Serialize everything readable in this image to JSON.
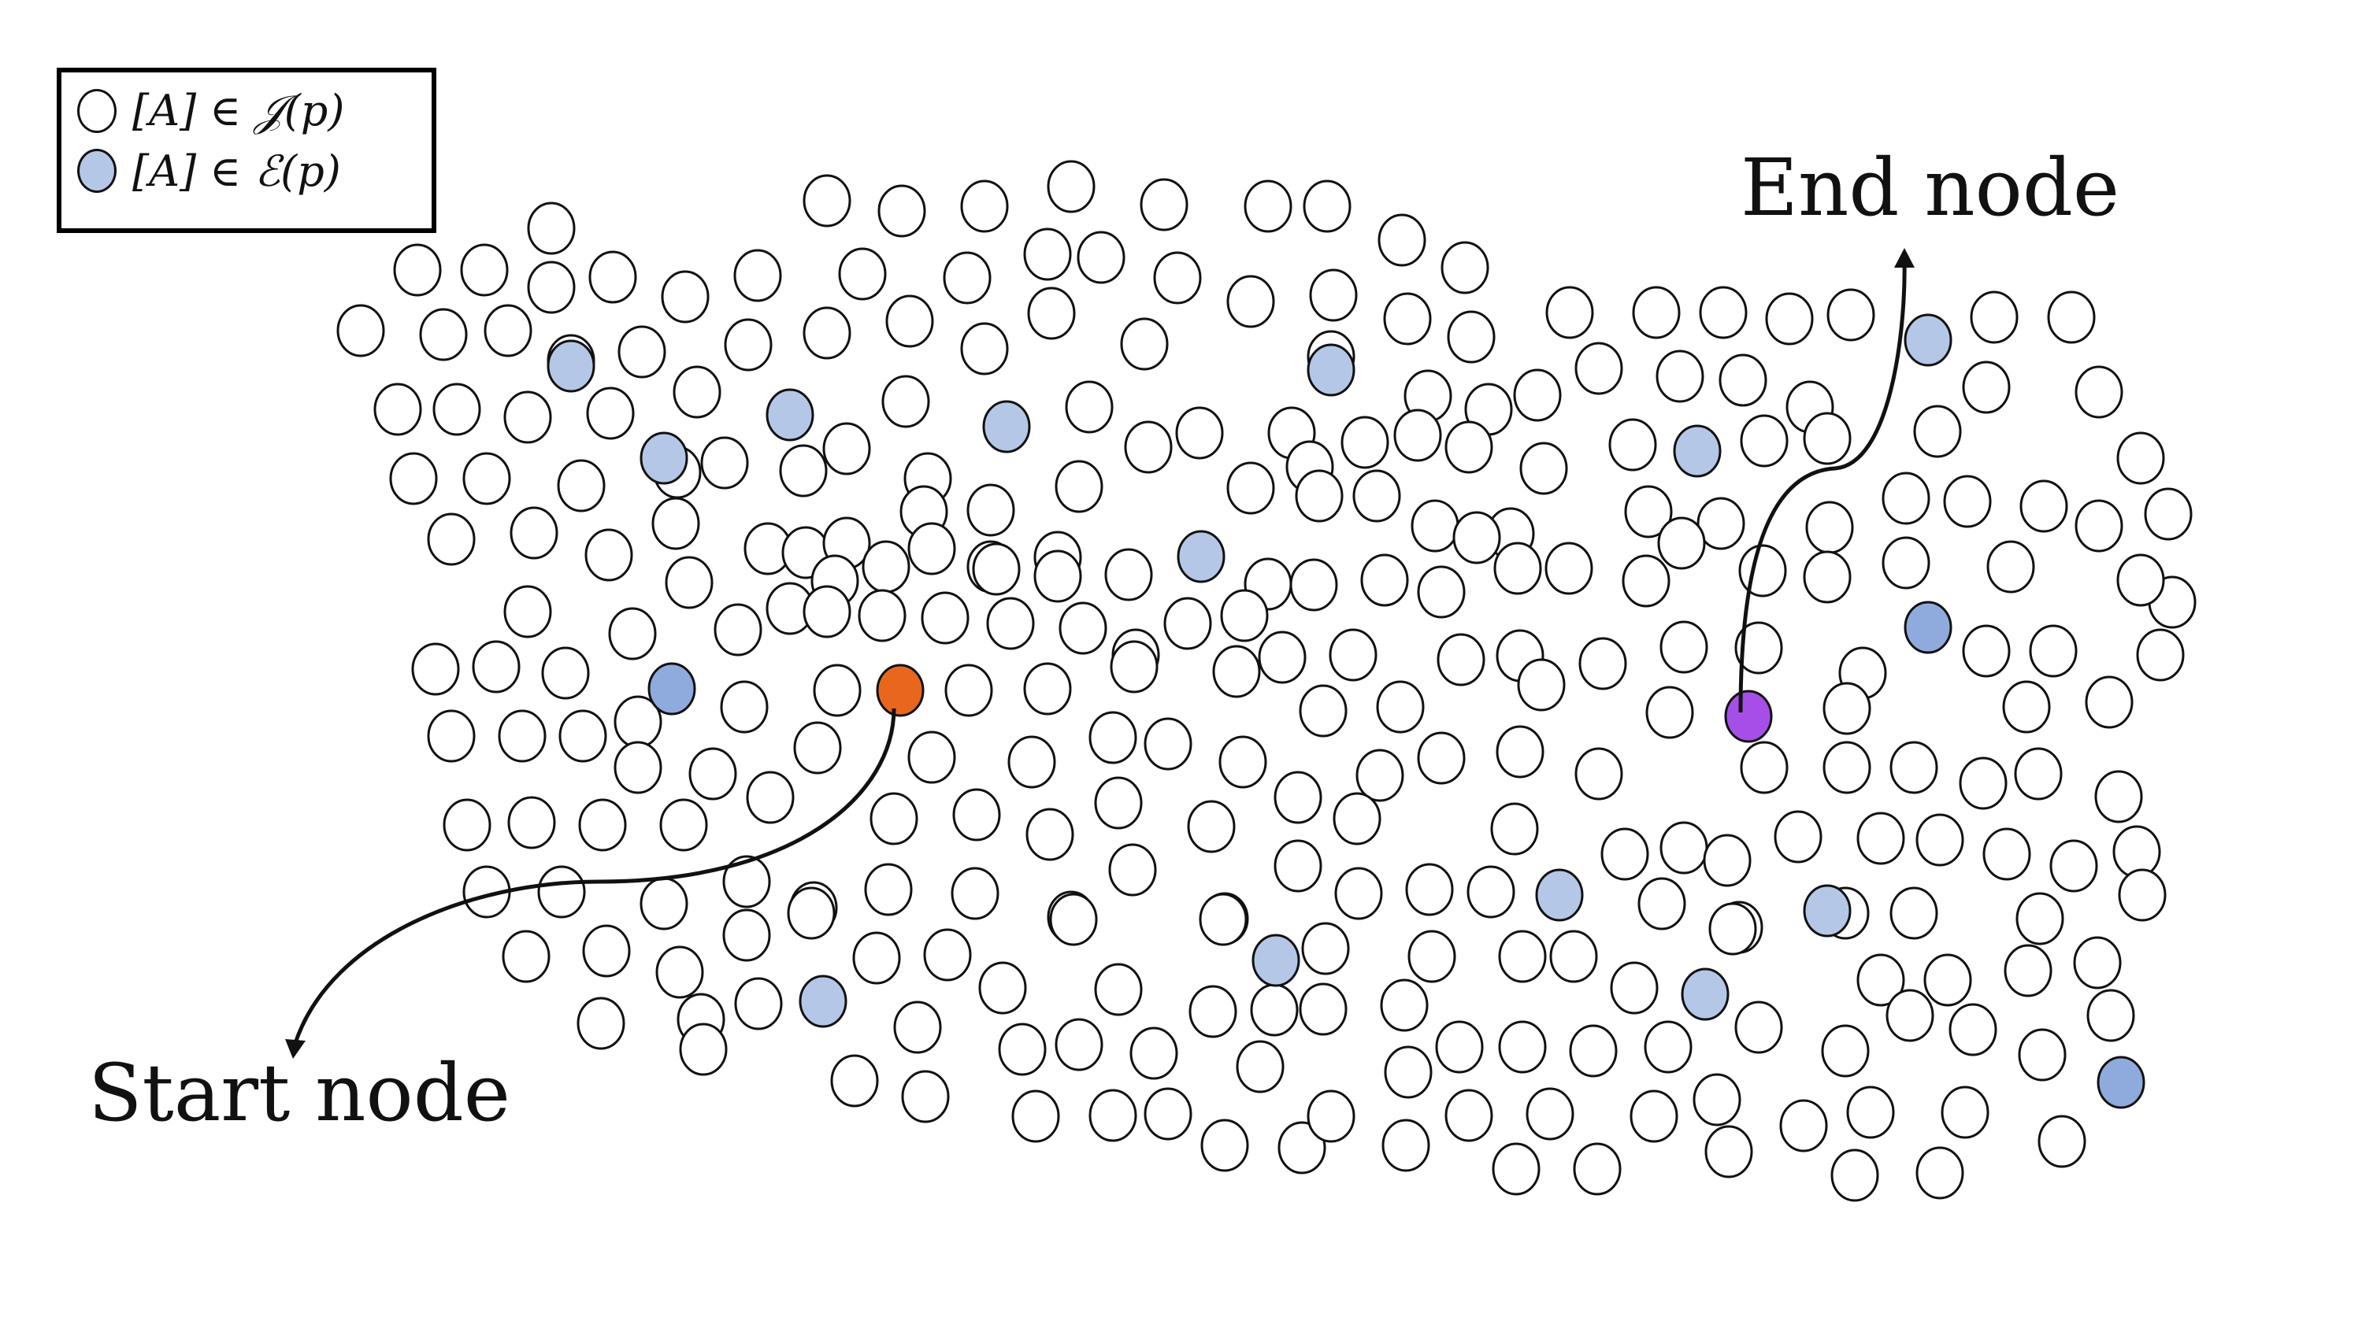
{
  "legend": {
    "items": [
      {
        "text": "[A] ∈ 𝒥(p)",
        "fill": "#ffffff"
      },
      {
        "text": "[A] ∈ ℰ(p)",
        "fill": "#b4c7e7"
      }
    ]
  },
  "labels": {
    "start": "Start node",
    "end": "End node"
  },
  "colors": {
    "node_default": "#ffffff",
    "node_highlight": "#b4c7e7",
    "node_highlight_dark": "#8faadc",
    "start_node": "#e8671c",
    "end_node": "#a64ee8",
    "stroke": "#111111"
  }
}
